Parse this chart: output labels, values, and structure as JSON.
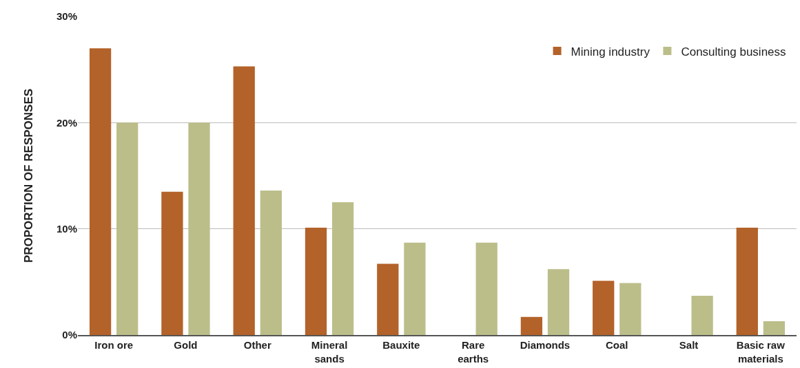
{
  "chart_data": {
    "type": "bar",
    "ylabel": "PROPORTION OF RESPONSES",
    "categories": [
      "Iron ore",
      "Gold",
      "Other",
      "Mineral\nsands",
      "Bauxite",
      "Rare\nearths",
      "Diamonds",
      "Coal",
      "Salt",
      "Basic raw\nmaterials"
    ],
    "series": [
      {
        "name": "Mining industry",
        "color": "#b36229",
        "values": [
          27.0,
          13.5,
          25.3,
          10.1,
          6.7,
          0,
          1.7,
          5.1,
          0,
          10.1
        ]
      },
      {
        "name": "Consulting business",
        "color": "#bcbe8a",
        "values": [
          20.0,
          20.0,
          13.6,
          12.5,
          8.7,
          8.7,
          6.2,
          4.9,
          3.7,
          1.3
        ]
      }
    ],
    "ylim": [
      0,
      30
    ],
    "yticks": [
      {
        "value": 0,
        "label": "0%"
      },
      {
        "value": 10,
        "label": "10%"
      },
      {
        "value": 20,
        "label": "20%"
      },
      {
        "value": 30,
        "label": "30%"
      }
    ],
    "grid": "y",
    "legend": "top right"
  }
}
